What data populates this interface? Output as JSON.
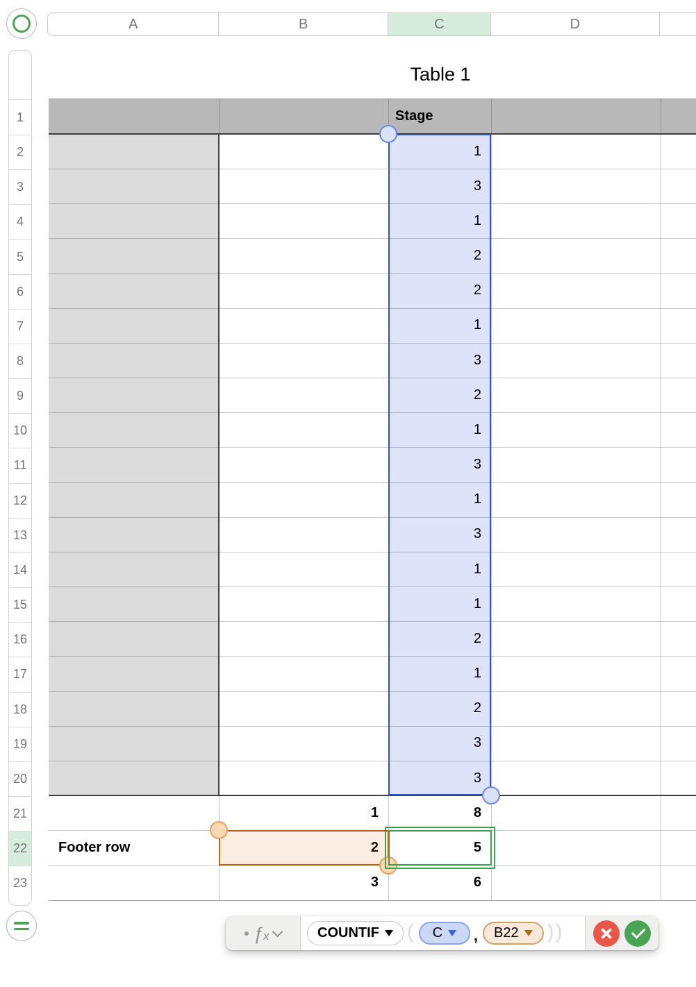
{
  "column_header_bar": {
    "letters": [
      "A",
      "B",
      "C",
      "D",
      ""
    ],
    "selected_letter": "C"
  },
  "row_header_strip": {
    "numbers": [
      1,
      2,
      3,
      4,
      5,
      6,
      7,
      8,
      9,
      10,
      11,
      12,
      13,
      14,
      15,
      16,
      17,
      18,
      19,
      20,
      21,
      22,
      23
    ],
    "selected_number": 22
  },
  "table": {
    "title": "Table 1",
    "header_row": {
      "c_label": "Stage"
    },
    "stage_values": [
      1,
      3,
      1,
      2,
      2,
      1,
      3,
      2,
      1,
      3,
      1,
      3,
      1,
      1,
      2,
      1,
      2,
      3,
      3
    ],
    "footer_rows": [
      {
        "row": 21,
        "a": "",
        "b": "1",
        "c": "8"
      },
      {
        "row": 22,
        "a": "Footer row",
        "b": "2",
        "c": "5"
      },
      {
        "row": 23,
        "a": "",
        "b": "3",
        "c": "6"
      }
    ]
  },
  "formula_bar": {
    "fx_label_f": "ƒ",
    "fx_label_x": "x",
    "function_name": "COUNTIF",
    "open_paren": "(",
    "arg1_label": "C",
    "comma": ",",
    "arg2_label": "B22",
    "close_parens": "))",
    "cancel_icon": "x-circle-icon",
    "accept_icon": "check-circle-icon"
  },
  "icons": {
    "top_left_handle": "table-select-ring",
    "bottom_left_handle": "table-menu-equals",
    "fx_chevron": "chevron-down"
  },
  "colors": {
    "accent_blue": "#2c52cf",
    "selection_fill": "#dde3f9",
    "accent_orange": "#bc5d12",
    "accent_green": "#3f9e4f",
    "header_gray": "#b8b8b8",
    "column_a_gray": "#dbdbdb",
    "selected_header_green": "#d6ecdc",
    "cancel_red": "#e8574a",
    "confirm_green": "#4aa455"
  }
}
